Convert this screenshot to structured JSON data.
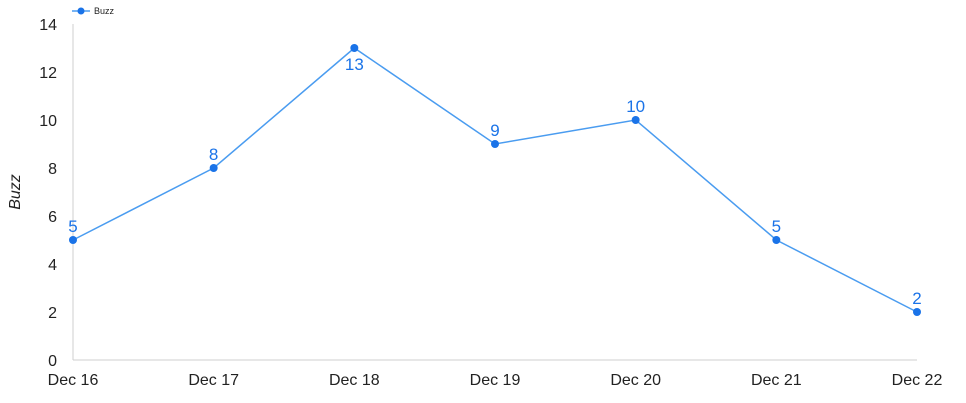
{
  "chart_data": {
    "type": "line",
    "title": "",
    "xlabel": "",
    "ylabel": "Buzz",
    "categories": [
      "Dec 16",
      "Dec 17",
      "Dec 18",
      "Dec 19",
      "Dec 20",
      "Dec 21",
      "Dec 22"
    ],
    "series": [
      {
        "name": "Buzz",
        "values": [
          5,
          8,
          13,
          9,
          10,
          5,
          2
        ],
        "color": "#4a9cf0",
        "marker_color": "#1a73e8",
        "label_color": "#1a73e8"
      }
    ],
    "yticks": [
      "0",
      "2",
      "4",
      "6",
      "8",
      "10",
      "12",
      "14"
    ],
    "ylim": [
      0,
      14
    ],
    "grid": false,
    "legend": "top-left",
    "data_labels": true
  }
}
